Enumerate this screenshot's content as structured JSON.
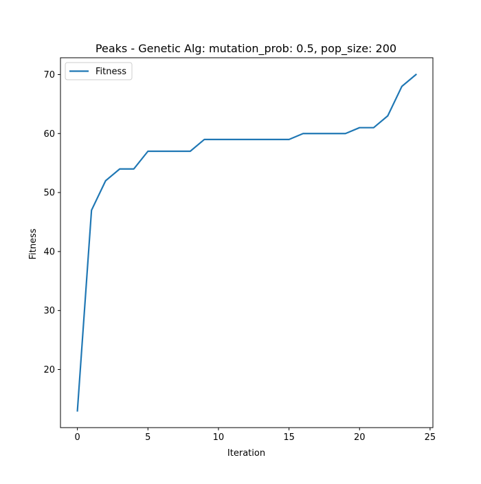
{
  "chart_data": {
    "type": "line",
    "title": "Peaks - Genetic Alg: mutation_prob: 0.5, pop_size: 200",
    "xlabel": "Iteration",
    "ylabel": "Fitness",
    "xlim": [
      -1.2,
      25.2
    ],
    "ylim": [
      10.15,
      72.85
    ],
    "xticks": [
      0,
      5,
      10,
      15,
      20,
      25
    ],
    "xtick_labels": [
      "0",
      "5",
      "10",
      "15",
      "20",
      "25"
    ],
    "yticks": [
      20,
      30,
      40,
      50,
      60,
      70
    ],
    "ytick_labels": [
      "20",
      "30",
      "40",
      "50",
      "60",
      "70"
    ],
    "grid": false,
    "legend": {
      "position": "upper-left",
      "entries": [
        "Fitness"
      ]
    },
    "series": [
      {
        "name": "Fitness",
        "color": "#1f77b4",
        "x": [
          0,
          1,
          2,
          3,
          4,
          5,
          6,
          7,
          8,
          9,
          10,
          11,
          12,
          13,
          14,
          15,
          16,
          17,
          18,
          19,
          20,
          21,
          22,
          23,
          24
        ],
        "y": [
          13,
          47,
          52,
          54,
          54,
          57,
          57,
          57,
          57,
          59,
          59,
          59,
          59,
          59,
          59,
          59,
          60,
          60,
          60,
          60,
          61,
          61,
          63,
          68,
          70
        ]
      }
    ]
  }
}
